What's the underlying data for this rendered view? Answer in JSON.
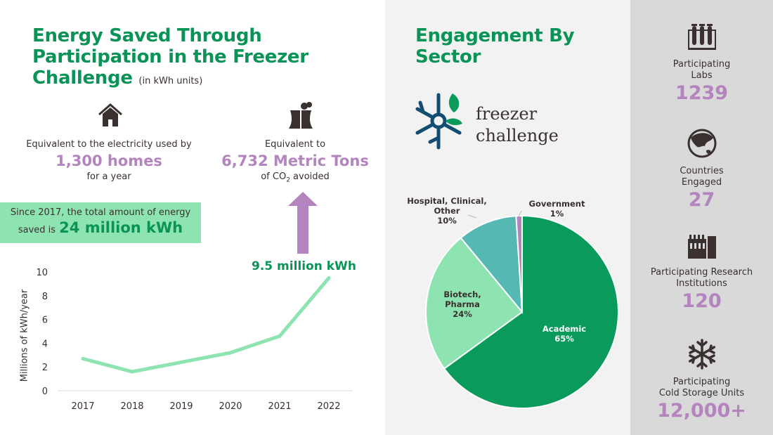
{
  "left": {
    "title": "Energy Saved Through Participation in the Freezer Challenge",
    "title_unit": "(in kWh units)",
    "homes": {
      "icon": "house-icon",
      "pre": "Equivalent to the electricity used by",
      "value": "1,300 homes",
      "post": "for a year"
    },
    "co2": {
      "icon": "power-plant-icon",
      "pre": "Equivalent to",
      "value": "6,732 Metric Tons",
      "post_a": "of CO",
      "post_sub": "2",
      "post_b": " avoided"
    },
    "total": {
      "pre": "Since 2017, the total amount of energy",
      "pre2": "saved is",
      "value": "24 million kWh"
    }
  },
  "middle": {
    "title": "Engagement By Sector",
    "logo": {
      "line1": "freezer",
      "line2": "challenge"
    }
  },
  "stats": [
    {
      "icon": "test-tubes-icon",
      "label1": "Participating",
      "label2": "Labs",
      "value": "1239"
    },
    {
      "icon": "globe-icon",
      "label1": "Countries",
      "label2": "Engaged",
      "value": "27"
    },
    {
      "icon": "factory-icon",
      "label1": "Participating Research",
      "label2": "Institutions",
      "value": "120"
    },
    {
      "icon": "snowflake-icon",
      "label1": "Participating",
      "label2": "Cold Storage Units",
      "value": "12,000+"
    }
  ],
  "colors": {
    "title_green": "#0a9357",
    "purple": "#b384bd",
    "light_green": "#8ee4b1",
    "line": "#8ee4b1"
  },
  "chart_data": [
    {
      "type": "line",
      "ylabel": "Millions of kWh/year",
      "categories": [
        "2017",
        "2018",
        "2019",
        "2020",
        "2021",
        "2022"
      ],
      "values": [
        2.7,
        1.6,
        2.4,
        3.2,
        4.6,
        9.5
      ],
      "yticks": [
        "0",
        "2",
        "4",
        "6",
        "8",
        "10"
      ],
      "ylim": [
        0,
        10
      ],
      "grid": false,
      "annotation": "9.5 million kWh"
    },
    {
      "type": "pie",
      "slices": [
        {
          "label": "Academic",
          "pct": "65%",
          "value": 65,
          "color": "#0a9a5c"
        },
        {
          "label": "Biotech, Pharma",
          "pct": "24%",
          "value": 24,
          "color": "#8ee4b1"
        },
        {
          "label": "Hospital, Clinical, Other",
          "pct": "10%",
          "value": 10,
          "color": "#56b8b3"
        },
        {
          "label": "Government",
          "pct": "1%",
          "value": 1,
          "color": "#b384bd"
        }
      ]
    }
  ]
}
